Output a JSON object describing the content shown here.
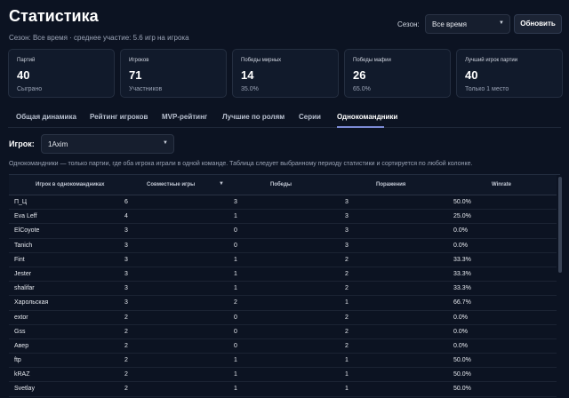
{
  "header": {
    "title": "Статистика",
    "subtitle": "Сезон: Все время · среднее участие: 5.6 игр на игрока",
    "season_label": "Сезон:",
    "season_value": "Все время",
    "refresh_label": "Обновить"
  },
  "cards": [
    {
      "label": "Партий",
      "value": "40",
      "sub": "Сыграно"
    },
    {
      "label": "Игроков",
      "value": "71",
      "sub": "Участников"
    },
    {
      "label": "Победы мирных",
      "value": "14",
      "sub": "35.0%"
    },
    {
      "label": "Победы мафии",
      "value": "26",
      "sub": "65.0%"
    },
    {
      "label": "Лучший игрок партии",
      "value": "40",
      "sub": "Только 1 место"
    }
  ],
  "tabs": [
    {
      "label": "Общая динамика"
    },
    {
      "label": "Рейтинг игроков"
    },
    {
      "label": "MVP-рейтинг"
    },
    {
      "label": "Лучшие по ролям"
    },
    {
      "label": "Серии"
    },
    {
      "label": "Однокомандники"
    }
  ],
  "active_tab": "Однокомандники",
  "player_filter": {
    "label": "Игрок:",
    "value": "1Axim"
  },
  "description": "Однокомандники — только партии, где оба игрока играли в одной команде. Таблица следует выбранному периоду статистики и сортируется по любой колонке.",
  "table": {
    "columns": [
      "Игрок в однокомандниках",
      "Совместные игры",
      "Победы",
      "Поражения",
      "Winrate"
    ],
    "sorted_by": "Совместные игры",
    "rows": [
      [
        "П_Ц",
        "6",
        "3",
        "3",
        "50.0%"
      ],
      [
        "Eva Leff",
        "4",
        "1",
        "3",
        "25.0%"
      ],
      [
        "ElCoyote",
        "3",
        "0",
        "3",
        "0.0%"
      ],
      [
        "Tanich",
        "3",
        "0",
        "3",
        "0.0%"
      ],
      [
        "Fint",
        "3",
        "1",
        "2",
        "33.3%"
      ],
      [
        "Jester",
        "3",
        "1",
        "2",
        "33.3%"
      ],
      [
        "shalifar",
        "3",
        "1",
        "2",
        "33.3%"
      ],
      [
        "Харольская",
        "3",
        "2",
        "1",
        "66.7%"
      ],
      [
        "extor",
        "2",
        "0",
        "2",
        "0.0%"
      ],
      [
        "Gss",
        "2",
        "0",
        "2",
        "0.0%"
      ],
      [
        "Авер",
        "2",
        "0",
        "2",
        "0.0%"
      ],
      [
        "ftp",
        "2",
        "1",
        "1",
        "50.0%"
      ],
      [
        "kRAZ",
        "2",
        "1",
        "1",
        "50.0%"
      ],
      [
        "Svetlay",
        "2",
        "1",
        "1",
        "50.0%"
      ]
    ]
  }
}
